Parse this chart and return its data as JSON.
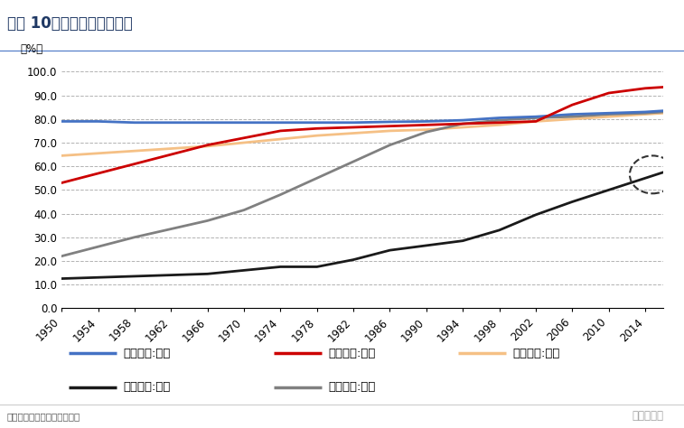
{
  "title": "图表 10、各国城市化率对比",
  "ylabel": "（%）",
  "source": "资料来源：联合国，华创证券",
  "watermark": "地产豪声音",
  "years": [
    1950,
    1954,
    1958,
    1962,
    1966,
    1970,
    1974,
    1978,
    1982,
    1986,
    1990,
    1994,
    1998,
    2002,
    2006,
    2010,
    2014,
    2016
  ],
  "UK": [
    79.0,
    79.0,
    78.5,
    78.5,
    78.5,
    78.5,
    78.5,
    78.5,
    78.5,
    78.8,
    79.0,
    79.5,
    80.5,
    81.0,
    82.0,
    82.5,
    83.0,
    83.5
  ],
  "Japan": [
    53.0,
    57.0,
    61.0,
    65.0,
    69.0,
    72.0,
    75.0,
    76.0,
    76.5,
    77.0,
    77.5,
    78.0,
    78.5,
    79.0,
    86.0,
    91.0,
    93.0,
    93.5
  ],
  "USA": [
    64.5,
    65.5,
    66.5,
    67.5,
    68.5,
    70.0,
    71.5,
    73.0,
    74.0,
    75.0,
    75.5,
    76.5,
    77.5,
    79.0,
    80.0,
    81.0,
    82.0,
    82.5
  ],
  "China": [
    12.5,
    13.0,
    13.5,
    14.0,
    14.5,
    16.0,
    17.5,
    17.5,
    20.5,
    24.5,
    26.5,
    28.5,
    33.0,
    39.5,
    45.0,
    50.0,
    55.0,
    57.5
  ],
  "Korea": [
    22.0,
    26.0,
    30.0,
    33.5,
    37.0,
    41.5,
    48.0,
    55.0,
    62.0,
    69.0,
    74.5,
    78.0,
    79.5,
    80.5,
    81.0,
    82.0,
    82.5,
    83.0
  ],
  "colors": {
    "UK": "#4472C4",
    "Japan": "#CC0000",
    "USA": "#F5C085",
    "China": "#1A1A1A",
    "Korea": "#808080"
  },
  "legend_labels": {
    "UK": "城市化率:英国",
    "Japan": "城市化率:日本",
    "USA": "城市化率:美国",
    "China": "城市化率:中国",
    "Korea": "城市化率:韩国"
  },
  "ylim": [
    0.0,
    105.0
  ],
  "yticks": [
    0.0,
    10.0,
    20.0,
    30.0,
    40.0,
    50.0,
    60.0,
    70.0,
    80.0,
    90.0,
    100.0
  ],
  "xticks": [
    1950,
    1954,
    1958,
    1962,
    1966,
    1970,
    1974,
    1978,
    1982,
    1986,
    1990,
    1994,
    1998,
    2002,
    2006,
    2010,
    2014
  ],
  "background_color": "#FFFFFF",
  "grid_color": "#AAAAAA",
  "title_fontsize": 12,
  "axis_fontsize": 8.5,
  "legend_fontsize": 9.5
}
